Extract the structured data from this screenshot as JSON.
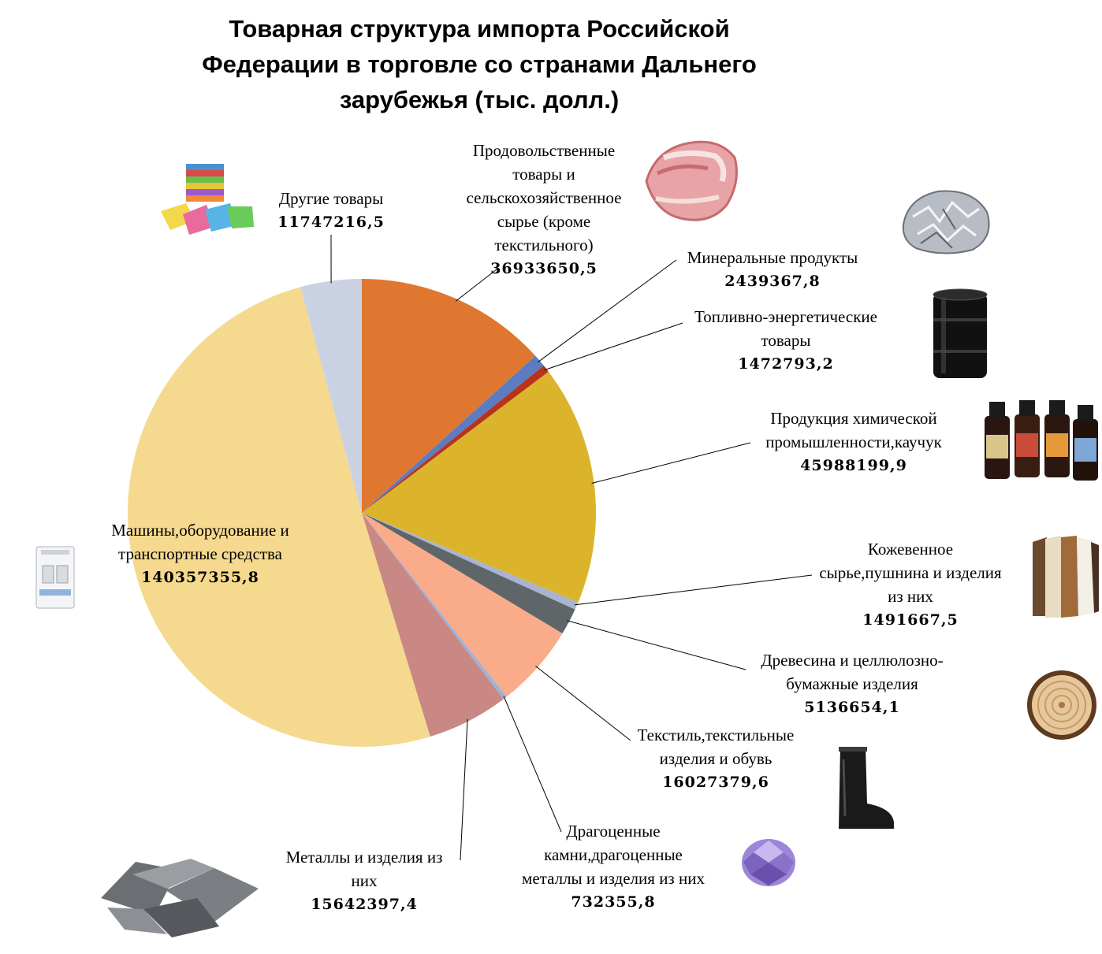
{
  "title_lines": [
    "Товарная структура импорта Российской",
    "Федерации в торговле со странами Дальнего",
    "зарубежья (тыс. долл.)"
  ],
  "chart_data": {
    "type": "pie",
    "title": "Товарная структура импорта Российской Федерации в торговле со странами Дальнего зарубежья (тыс. долл.)",
    "start_angle_deg": 0,
    "direction": "clockwise",
    "slices": [
      {
        "label_lines": [
          "Продовольственные",
          "товары и",
          "сельскохозяйственное",
          "сырье (кроме",
          "текстильного)"
        ],
        "value_text": "36933650,5",
        "value": 36933650.5,
        "color": "#E07730"
      },
      {
        "label_lines": [
          "Минеральные  продукты"
        ],
        "value_text": "2439367,8",
        "value": 2439367.8,
        "color": "#5B7CC0"
      },
      {
        "label_lines": [
          "Топливно-энергетические",
          "товары"
        ],
        "value_text": "1472793,2",
        "value": 1472793.2,
        "color": "#B8331C"
      },
      {
        "label_lines": [
          "Продукция химической",
          "промышленности,каучук"
        ],
        "value_text": "45988199,9",
        "value": 45988199.9,
        "color": "#DBB42C"
      },
      {
        "label_lines": [
          "Кожевенное",
          "сырье,пушнина и изделия",
          "из них"
        ],
        "value_text": "1491667,5",
        "value": 1491667.5,
        "color": "#A9B4CF"
      },
      {
        "label_lines": [
          "Древесина и целлюлозно-",
          "бумажные изделия"
        ],
        "value_text": "5136654,1",
        "value": 5136654.1,
        "color": "#5F6669"
      },
      {
        "label_lines": [
          "Текстиль,текстильные",
          "изделия и обувь"
        ],
        "value_text": "16027379,6",
        "value": 16027379.6,
        "color": "#F9AB8A"
      },
      {
        "label_lines": [
          "Драгоценные",
          "камни,драгоценные",
          "металлы и изделия из них"
        ],
        "value_text": "732355,8",
        "value": 732355.8,
        "color": "#9DB2DB"
      },
      {
        "label_lines": [
          "Металлы  и изделия из",
          "них"
        ],
        "value_text": "15642397,4",
        "value": 15642397.4,
        "color": "#C98884"
      },
      {
        "label_lines": [
          "Машины,оборудование и",
          "транспортные средства"
        ],
        "value_text": "140357355,8",
        "value": 140357355.8,
        "color": "#F5D98E"
      },
      {
        "label_lines": [
          "Другие товары"
        ],
        "value_text": "11747216,5",
        "value": 11747216.5,
        "color": "#CAD1E3"
      }
    ],
    "legend": "none",
    "data_labels": "outside with leader lines"
  },
  "images": [
    "meat-image",
    "aluminum-foil-image",
    "oil-barrel-image",
    "chemical-bottles-image",
    "fur-coats-image",
    "wood-log-image",
    "rubber-boot-image",
    "gemstone-image",
    "metal-ingots-image",
    "circuit-breaker-image",
    "towels-image"
  ]
}
